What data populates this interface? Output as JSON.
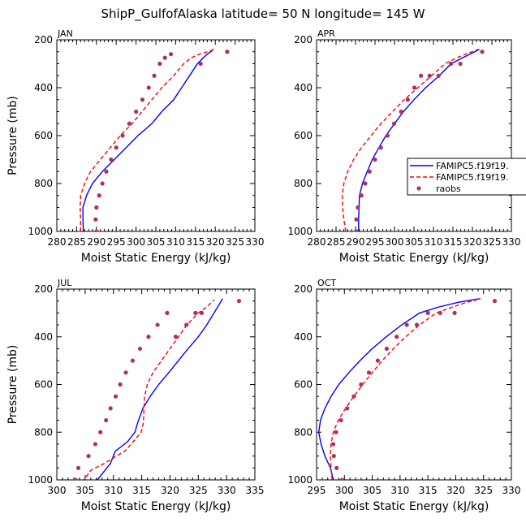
{
  "figure": {
    "title": "ShipP_GulfofAlaska  latitude= 50 N longitude= 145 W"
  },
  "chart_data": [
    {
      "type": "line",
      "panel_title": "JAN",
      "xlabel": "Moist Static Energy (kJ/kg)",
      "ylabel": "Pressure (mb)",
      "xlim": [
        280,
        330
      ],
      "ylim": [
        1000,
        200
      ],
      "xticks": [
        280,
        285,
        290,
        295,
        300,
        305,
        310,
        315,
        320,
        325,
        330
      ],
      "yticks": [
        200,
        400,
        600,
        800,
        1000
      ],
      "series": [
        {
          "name": "FAMIPC5.f19f19.",
          "style": "solid",
          "color": "#0000ff",
          "x": [
            286.7,
            286.6,
            286.6,
            287.5,
            289.0,
            291.5,
            294.5,
            297.5,
            300.5,
            304.0,
            306.5,
            309.5,
            311.5,
            313.5,
            315.5,
            317.0,
            318.0,
            319.0,
            319.5
          ],
          "y": [
            1000,
            950,
            900,
            850,
            800,
            750,
            700,
            650,
            600,
            550,
            500,
            450,
            400,
            350,
            300,
            275,
            260,
            248,
            238
          ]
        },
        {
          "name": "FAMIPC5.f19f19.",
          "style": "dashed",
          "color": "#ff0000",
          "x": [
            286.0,
            286.0,
            285.9,
            286.0,
            287.0,
            288.5,
            291.0,
            293.5,
            296.0,
            299.0,
            301.5,
            304.0,
            306.5,
            309.5,
            312.0,
            314.0,
            316.0,
            318.5,
            320.0
          ],
          "y": [
            1000,
            950,
            900,
            850,
            800,
            750,
            700,
            650,
            600,
            550,
            500,
            450,
            400,
            350,
            300,
            275,
            260,
            248,
            238
          ]
        },
        {
          "name": "raobs",
          "style": "markers",
          "color": "#b03060",
          "x": [
            290.0,
            289.8,
            290.0,
            290.7,
            291.5,
            292.5,
            293.7,
            295.0,
            296.6,
            298.3,
            300.0,
            301.6,
            303.2,
            304.6,
            306.0,
            307.3,
            308.8,
            316.3,
            323.0
          ],
          "y": [
            1000,
            950,
            900,
            850,
            800,
            750,
            700,
            650,
            600,
            550,
            500,
            450,
            400,
            350,
            300,
            275,
            260,
            300,
            250
          ]
        }
      ]
    },
    {
      "type": "line",
      "panel_title": "APR",
      "xlabel": "Moist Static Energy (kJ/kg)",
      "ylabel": "",
      "xlim": [
        280,
        330
      ],
      "ylim": [
        1000,
        200
      ],
      "xticks": [
        280,
        285,
        290,
        295,
        300,
        305,
        310,
        315,
        320,
        325,
        330
      ],
      "yticks": [
        200,
        400,
        600,
        800,
        1000
      ],
      "series": [
        {
          "name": "FAMIPC5.f19f19.",
          "style": "solid",
          "color": "#0000ff",
          "x": [
            290.8,
            290.8,
            290.9,
            291.0,
            291.8,
            293.0,
            294.3,
            296.0,
            297.8,
            300.0,
            302.3,
            305.0,
            308.0,
            311.5,
            314.5,
            317.5,
            320.0,
            321.8
          ],
          "y": [
            1000,
            950,
            900,
            850,
            800,
            750,
            700,
            650,
            600,
            550,
            500,
            450,
            400,
            350,
            300,
            275,
            255,
            240
          ]
        },
        {
          "name": "FAMIPC5.f19f19.",
          "style": "dashed",
          "color": "#ff0000",
          "x": [
            287.5,
            287.0,
            286.7,
            286.6,
            287.0,
            288.0,
            289.5,
            291.5,
            294.0,
            296.5,
            299.5,
            302.5,
            306.0,
            309.5,
            313.0,
            316.0,
            319.0,
            321.5
          ],
          "y": [
            1000,
            950,
            900,
            850,
            800,
            750,
            700,
            650,
            600,
            550,
            500,
            450,
            400,
            350,
            300,
            275,
            255,
            240
          ]
        },
        {
          "name": "raobs",
          "style": "markers",
          "color": "#b03060",
          "x": [
            290.2,
            290.2,
            290.6,
            291.5,
            292.5,
            293.6,
            295.0,
            296.5,
            298.2,
            299.9,
            301.7,
            303.4,
            305.1,
            306.8,
            309.0,
            311.3,
            314.5,
            316.9,
            322.5
          ],
          "y": [
            1000,
            950,
            900,
            850,
            800,
            750,
            700,
            650,
            600,
            550,
            500,
            450,
            400,
            350,
            350,
            350,
            300,
            300,
            250
          ]
        }
      ]
    },
    {
      "type": "line",
      "panel_title": "JUL",
      "xlabel": "Moist Static Energy (kJ/kg)",
      "ylabel": "Pressure (mb)",
      "xlim": [
        300,
        335
      ],
      "ylim": [
        1000,
        200
      ],
      "xticks": [
        300,
        305,
        310,
        315,
        320,
        325,
        330,
        335
      ],
      "yticks": [
        200,
        400,
        600,
        800,
        1000
      ],
      "series": [
        {
          "name": "FAMIPC5.f19f19.",
          "style": "solid",
          "color": "#0000ff",
          "x": [
            306.8,
            308.5,
            309.5,
            310.0,
            310.3,
            312.5,
            313.8,
            314.3,
            315.2,
            316.5,
            318.0,
            319.8,
            321.5,
            323.2,
            325.0,
            326.5,
            328.3,
            329.3
          ],
          "y": [
            1010,
            960,
            930,
            900,
            880,
            840,
            800,
            760,
            700,
            650,
            600,
            550,
            500,
            450,
            400,
            350,
            280,
            240
          ]
        },
        {
          "name": "FAMIPC5.f19f19.",
          "style": "dashed",
          "color": "#ff0000",
          "x": [
            304.5,
            306.0,
            308.5,
            310.5,
            312.0,
            313.5,
            314.9,
            315.3,
            315.4,
            315.5,
            316.0,
            317.0,
            318.5,
            320.0,
            321.5,
            323.0,
            325.0,
            326.5,
            327.8
          ],
          "y": [
            1010,
            960,
            930,
            900,
            880,
            840,
            800,
            760,
            700,
            650,
            600,
            550,
            500,
            450,
            400,
            350,
            300,
            275,
            245
          ]
        },
        {
          "name": "raobs",
          "style": "markers",
          "color": "#b03060",
          "x": [
            303.3,
            303.8,
            305.6,
            306.8,
            307.7,
            308.7,
            309.5,
            310.4,
            311.2,
            312.2,
            313.4,
            314.7,
            316.2,
            317.8,
            319.5,
            321.0,
            322.9,
            324.5,
            325.6,
            332.2
          ],
          "y": [
            1000,
            950,
            900,
            850,
            800,
            750,
            700,
            650,
            600,
            550,
            500,
            450,
            400,
            350,
            300,
            400,
            350,
            300,
            300,
            250
          ]
        }
      ]
    },
    {
      "type": "line",
      "panel_title": "OCT",
      "xlabel": "Moist Static Energy (kJ/kg)",
      "ylabel": "",
      "xlim": [
        295,
        330
      ],
      "ylim": [
        1000,
        200
      ],
      "xticks": [
        295,
        300,
        305,
        310,
        315,
        320,
        325,
        330
      ],
      "yticks": [
        200,
        400,
        600,
        800,
        1000
      ],
      "series": [
        {
          "name": "FAMIPC5.f19f19.",
          "style": "solid",
          "color": "#0000ff",
          "x": [
            298.0,
            297.5,
            296.5,
            295.8,
            295.4,
            295.7,
            296.5,
            297.6,
            299.0,
            300.8,
            302.8,
            305.0,
            307.5,
            310.3,
            313.5,
            317.0,
            320.5,
            324.3
          ],
          "y": [
            1000,
            950,
            900,
            850,
            800,
            750,
            700,
            650,
            600,
            550,
            500,
            450,
            400,
            350,
            300,
            275,
            255,
            240
          ]
        },
        {
          "name": "FAMIPC5.f19f19.",
          "style": "dashed",
          "color": "#ff0000",
          "x": [
            297.8,
            297.6,
            297.5,
            297.6,
            298.0,
            298.9,
            300.2,
            301.7,
            303.3,
            305.0,
            306.8,
            308.8,
            311.0,
            313.5,
            316.5,
            319.5,
            322.0,
            324.5
          ],
          "y": [
            1000,
            950,
            900,
            850,
            800,
            750,
            700,
            650,
            600,
            550,
            500,
            450,
            400,
            350,
            300,
            275,
            255,
            240
          ]
        },
        {
          "name": "raobs",
          "style": "markers",
          "color": "#b03060",
          "x": [
            299.6,
            298.6,
            298.1,
            298.0,
            298.5,
            299.4,
            300.5,
            301.7,
            303.0,
            304.4,
            306.0,
            307.6,
            309.4,
            311.2,
            313.0,
            315.0,
            317.2,
            319.8,
            327.0
          ],
          "y": [
            1000,
            950,
            900,
            850,
            800,
            750,
            700,
            650,
            600,
            550,
            500,
            450,
            400,
            350,
            350,
            300,
            300,
            300,
            250
          ]
        }
      ]
    }
  ],
  "legend": {
    "placement": "between APR and OCT panels, right side",
    "entries": [
      {
        "label": "FAMIPC5.f19f19.",
        "style": "solid",
        "color": "#0000ff"
      },
      {
        "label": "FAMIPC5.f19f19.",
        "style": "dashed",
        "color": "#ff0000"
      },
      {
        "label": "raobs",
        "style": "markers",
        "color": "#b03060"
      }
    ]
  }
}
